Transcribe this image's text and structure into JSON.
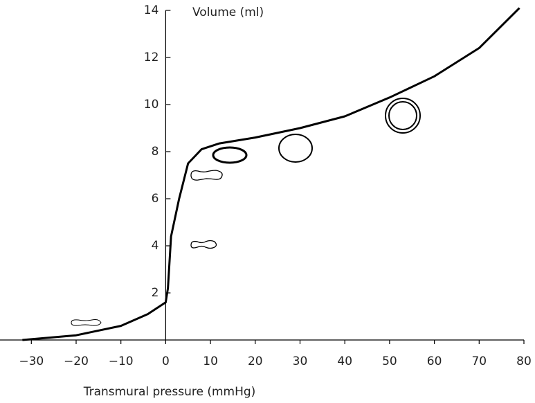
{
  "chart_data": {
    "type": "line",
    "x_label": "Transmural pressure (mmHg)",
    "y_label": "Volume (ml)",
    "xlim": [
      -37,
      80
    ],
    "ylim": [
      0,
      14
    ],
    "xticks": [
      {
        "value": -30,
        "label": "−30"
      },
      {
        "value": -20,
        "label": "−20"
      },
      {
        "value": -10,
        "label": "−10"
      },
      0,
      10,
      20,
      30,
      40,
      50,
      60,
      70,
      80
    ],
    "yticks": [
      2,
      4,
      6,
      8,
      10,
      12,
      14
    ],
    "series": [
      {
        "color": "#000000",
        "x": [
          -32,
          -20,
          -10,
          -4,
          0,
          0.5,
          1.2,
          3,
          5,
          8,
          12,
          20,
          30,
          40,
          50,
          60,
          70,
          79
        ],
        "values": [
          0,
          0.2,
          0.6,
          1.1,
          1.6,
          2.2,
          4.4,
          6,
          7.5,
          8.1,
          8.35,
          8.6,
          9.0,
          9.5,
          10.3,
          11.2,
          12.4,
          14.1
        ]
      }
    ]
  }
}
